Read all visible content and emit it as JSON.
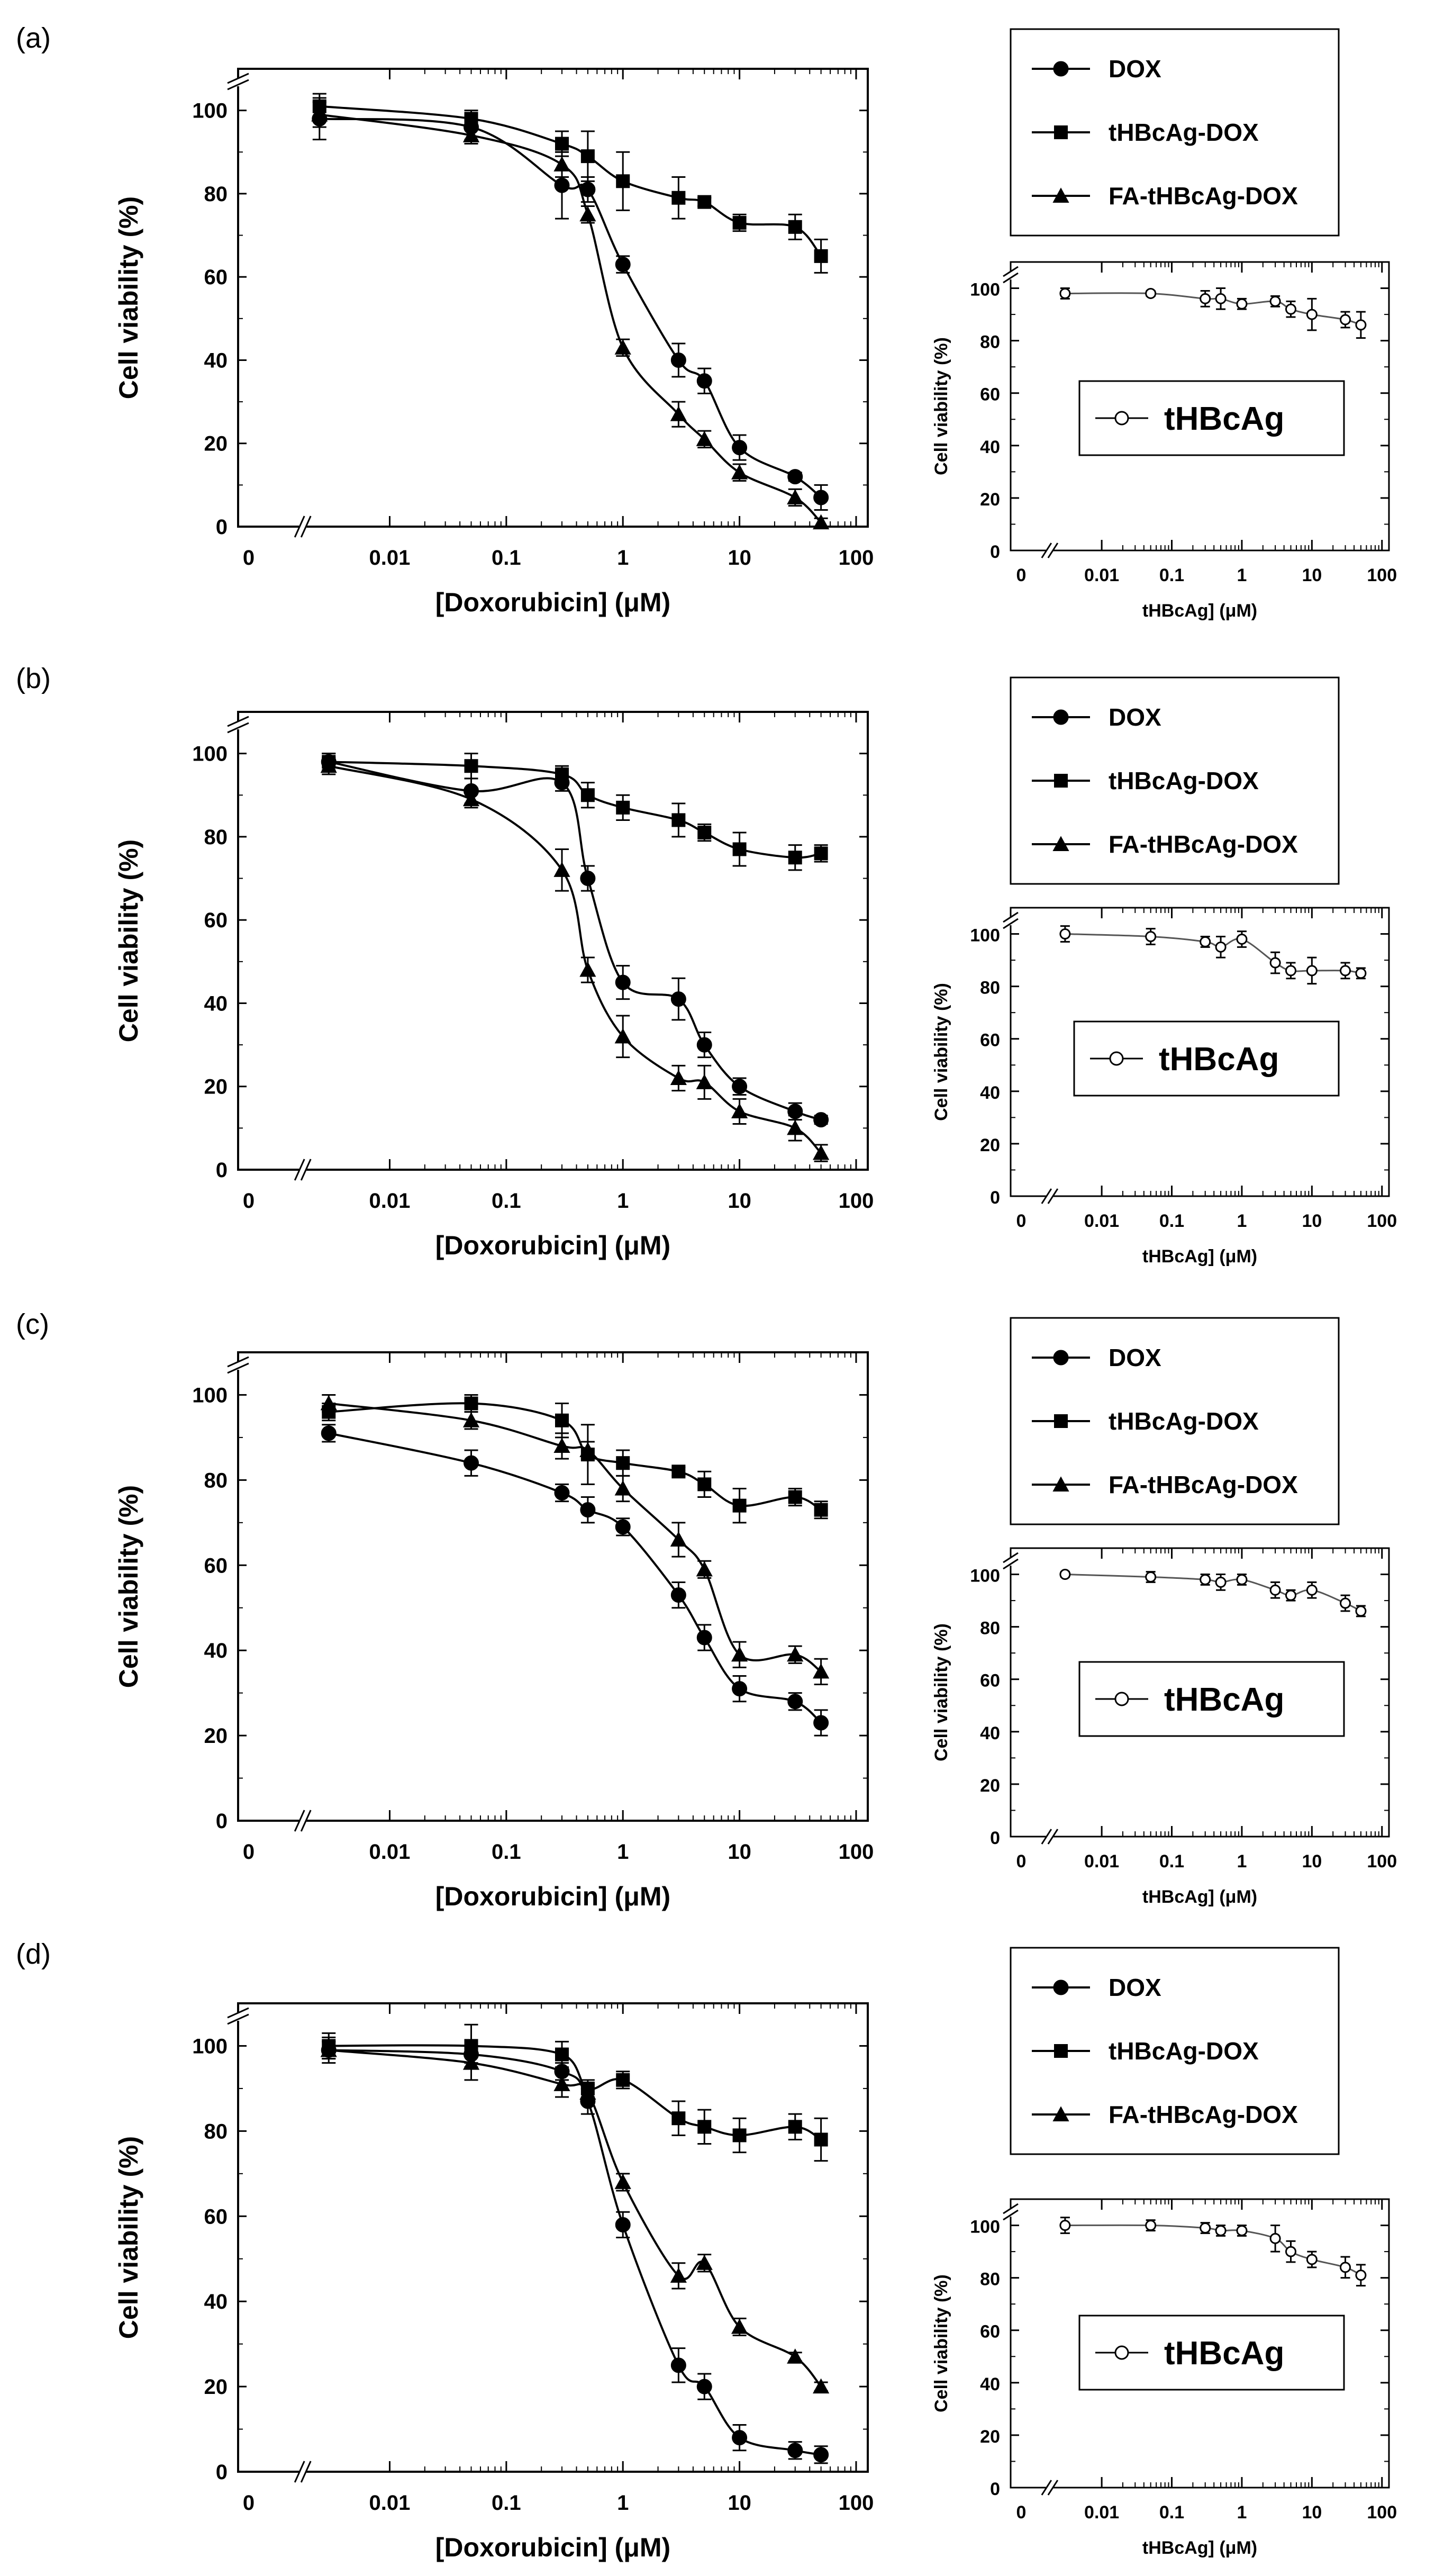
{
  "chart_data": [
    {
      "panel": "(a)",
      "type": "scatter",
      "xscale": "log",
      "x_tick_labels": [
        "0",
        "0.01",
        "0.1",
        "1",
        "10",
        "100"
      ],
      "y_tick_labels": [
        "0",
        "20",
        "40",
        "60",
        "80",
        "100"
      ],
      "xlabel": "[Doxorubicin] (μM)",
      "ylabel": "Cell viability (%)",
      "ylim": [
        0,
        110
      ],
      "series": [
        {
          "name": "DOX",
          "marker": "circle",
          "x": [
            0.0025,
            0.05,
            0.3,
            0.5,
            1,
            3,
            5,
            10,
            30,
            50
          ],
          "values": [
            98,
            96,
            82,
            81,
            63,
            40,
            35,
            19,
            12,
            7
          ],
          "err": [
            5,
            3,
            8,
            3,
            2,
            4,
            3,
            3,
            1,
            3
          ]
        },
        {
          "name": "tHBcAg-DOX",
          "marker": "square",
          "x": [
            0.0025,
            0.05,
            0.3,
            0.5,
            1,
            3,
            5,
            10,
            30,
            50
          ],
          "values": [
            101,
            98,
            92,
            89,
            83,
            79,
            78,
            73,
            72,
            65
          ],
          "err": [
            3,
            2,
            3,
            6,
            7,
            5,
            1,
            2,
            3,
            4
          ]
        },
        {
          "name": "FA-tHBcAg-DOX",
          "marker": "triangle",
          "x": [
            0.0025,
            0.05,
            0.3,
            0.5,
            1,
            3,
            5,
            10,
            30,
            50
          ],
          "values": [
            99,
            94,
            87,
            75,
            43,
            27,
            21,
            13,
            7,
            1
          ],
          "err": [
            3,
            2,
            3,
            2,
            2,
            3,
            2,
            2,
            2,
            1
          ]
        }
      ]
    },
    {
      "panel": "(a)",
      "type": "scatter",
      "xscale": "log",
      "x_tick_labels": [
        "0",
        "0.01",
        "0.1",
        "1",
        "10",
        "100"
      ],
      "y_tick_labels": [
        "0",
        "20",
        "40",
        "60",
        "80",
        "100"
      ],
      "xlabel": "tHBcAg] (μM)",
      "ylabel": "Cell viability (%)",
      "ylim": [
        0,
        110
      ],
      "series": [
        {
          "name": "tHBcAg",
          "marker": "open-circle",
          "x": [
            0.003,
            0.05,
            0.3,
            0.5,
            1,
            3,
            5,
            10,
            30,
            50
          ],
          "values": [
            98,
            98,
            96,
            96,
            94,
            95,
            92,
            90,
            88,
            86
          ],
          "err": [
            2,
            1,
            3,
            4,
            2,
            2,
            3,
            6,
            3,
            5
          ]
        }
      ]
    },
    {
      "panel": "(b)",
      "type": "scatter",
      "xscale": "log",
      "x_tick_labels": [
        "0",
        "0.01",
        "0.1",
        "1",
        "10",
        "100"
      ],
      "y_tick_labels": [
        "0",
        "20",
        "40",
        "60",
        "80",
        "100"
      ],
      "xlabel": "[Doxorubicin] (μM)",
      "ylabel": "Cell viability (%)",
      "ylim": [
        0,
        110
      ],
      "series": [
        {
          "name": "DOX",
          "marker": "circle",
          "x": [
            0.003,
            0.05,
            0.3,
            0.5,
            1,
            3,
            5,
            10,
            30,
            50
          ],
          "values": [
            98,
            91,
            93,
            70,
            45,
            41,
            30,
            20,
            14,
            12
          ],
          "err": [
            2,
            3,
            2,
            3,
            4,
            5,
            3,
            2,
            2,
            1
          ]
        },
        {
          "name": "tHBcAg-DOX",
          "marker": "square",
          "x": [
            0.003,
            0.05,
            0.3,
            0.5,
            1,
            3,
            5,
            10,
            30,
            50
          ],
          "values": [
            98,
            97,
            95,
            90,
            87,
            84,
            81,
            77,
            75,
            76
          ],
          "err": [
            2,
            3,
            2,
            3,
            3,
            4,
            2,
            4,
            3,
            2
          ]
        },
        {
          "name": "FA-tHBcAg-DOX",
          "marker": "triangle",
          "x": [
            0.003,
            0.05,
            0.3,
            0.5,
            1,
            3,
            5,
            10,
            30,
            50
          ],
          "values": [
            97,
            89,
            72,
            48,
            32,
            22,
            21,
            14,
            10,
            4
          ],
          "err": [
            2,
            2,
            5,
            3,
            5,
            3,
            4,
            3,
            3,
            2
          ]
        }
      ]
    },
    {
      "panel": "(b)",
      "type": "scatter",
      "xscale": "log",
      "x_tick_labels": [
        "0",
        "0.01",
        "0.1",
        "1",
        "10",
        "100"
      ],
      "y_tick_labels": [
        "0",
        "20",
        "40",
        "60",
        "80",
        "100"
      ],
      "xlabel": "tHBcAg] (μM)",
      "ylabel": "Cell viability (%)",
      "ylim": [
        0,
        110
      ],
      "series": [
        {
          "name": "tHBcAg",
          "marker": "open-circle",
          "x": [
            0.003,
            0.05,
            0.3,
            0.5,
            1,
            3,
            5,
            10,
            30,
            50
          ],
          "values": [
            100,
            99,
            97,
            95,
            98,
            89,
            86,
            86,
            86,
            85
          ],
          "err": [
            3,
            3,
            2,
            4,
            3,
            4,
            3,
            5,
            3,
            2
          ]
        }
      ]
    },
    {
      "panel": "(c)",
      "type": "scatter",
      "xscale": "log",
      "x_tick_labels": [
        "0",
        "0.01",
        "0.1",
        "1",
        "10",
        "100"
      ],
      "y_tick_labels": [
        "0",
        "20",
        "40",
        "60",
        "80",
        "100"
      ],
      "xlabel": "[Doxorubicin] (μM)",
      "ylabel": "Cell viability (%)",
      "ylim": [
        0,
        110
      ],
      "series": [
        {
          "name": "DOX",
          "marker": "circle",
          "x": [
            0.003,
            0.05,
            0.3,
            0.5,
            1,
            3,
            5,
            10,
            30,
            50
          ],
          "values": [
            91,
            84,
            77,
            73,
            69,
            53,
            43,
            31,
            28,
            23
          ],
          "err": [
            2,
            3,
            2,
            3,
            2,
            3,
            3,
            3,
            2,
            3
          ]
        },
        {
          "name": "tHBcAg-DOX",
          "marker": "square",
          "x": [
            0.003,
            0.05,
            0.3,
            0.5,
            1,
            3,
            5,
            10,
            30,
            50
          ],
          "values": [
            96,
            98,
            94,
            86,
            84,
            82,
            79,
            74,
            76,
            73
          ],
          "err": [
            2,
            2,
            4,
            7,
            3,
            1,
            3,
            4,
            2,
            2
          ]
        },
        {
          "name": "FA-tHBcAg-DOX",
          "marker": "triangle",
          "x": [
            0.003,
            0.05,
            0.3,
            0.5,
            1,
            3,
            5,
            10,
            30,
            50
          ],
          "values": [
            98,
            94,
            88,
            87,
            78,
            66,
            59,
            39,
            39,
            35
          ],
          "err": [
            2,
            2,
            3,
            2,
            3,
            4,
            2,
            3,
            2,
            3
          ]
        }
      ]
    },
    {
      "panel": "(c)",
      "type": "scatter",
      "xscale": "log",
      "x_tick_labels": [
        "0",
        "0.01",
        "0.1",
        "1",
        "10",
        "100"
      ],
      "y_tick_labels": [
        "0",
        "20",
        "40",
        "60",
        "80",
        "100"
      ],
      "xlabel": "tHBcAg] (μM)",
      "ylabel": "Cell viability (%)",
      "ylim": [
        0,
        110
      ],
      "series": [
        {
          "name": "tHBcAg",
          "marker": "open-circle",
          "x": [
            0.003,
            0.05,
            0.3,
            0.5,
            1,
            3,
            5,
            10,
            30,
            50
          ],
          "values": [
            100,
            99,
            98,
            97,
            98,
            94,
            92,
            94,
            89,
            86
          ],
          "err": [
            1,
            2,
            2,
            3,
            2,
            3,
            2,
            3,
            3,
            2
          ]
        }
      ]
    },
    {
      "panel": "(d)",
      "type": "scatter",
      "xscale": "log",
      "x_tick_labels": [
        "0",
        "0.01",
        "0.1",
        "1",
        "10",
        "100"
      ],
      "y_tick_labels": [
        "0",
        "20",
        "40",
        "60",
        "80",
        "100"
      ],
      "xlabel": "[Doxorubicin] (μM)",
      "ylabel": "Cell viability (%)",
      "ylim": [
        0,
        110
      ],
      "series": [
        {
          "name": "DOX",
          "marker": "circle",
          "x": [
            0.003,
            0.05,
            0.3,
            0.5,
            1,
            3,
            5,
            10,
            30,
            50
          ],
          "values": [
            99,
            98,
            94,
            87,
            58,
            25,
            20,
            8,
            5,
            4
          ],
          "err": [
            3,
            2,
            2,
            3,
            3,
            4,
            3,
            3,
            2,
            2
          ]
        },
        {
          "name": "tHBcAg-DOX",
          "marker": "square",
          "x": [
            0.003,
            0.05,
            0.3,
            0.5,
            1,
            3,
            5,
            10,
            30,
            50
          ],
          "values": [
            100,
            100,
            98,
            90,
            92,
            83,
            81,
            79,
            81,
            78
          ],
          "err": [
            3,
            5,
            3,
            2,
            2,
            4,
            4,
            4,
            3,
            5
          ]
        },
        {
          "name": "FA-tHBcAg-DOX",
          "marker": "triangle",
          "x": [
            0.003,
            0.05,
            0.3,
            0.5,
            1,
            3,
            5,
            10,
            30,
            50
          ],
          "values": [
            99,
            96,
            91,
            89,
            68,
            46,
            49,
            34,
            27,
            20
          ],
          "err": [
            2,
            4,
            3,
            2,
            2,
            3,
            2,
            2,
            1,
            1
          ]
        }
      ]
    },
    {
      "panel": "(d)",
      "type": "scatter",
      "xscale": "log",
      "x_tick_labels": [
        "0",
        "0.01",
        "0.1",
        "1",
        "10",
        "100"
      ],
      "y_tick_labels": [
        "0",
        "20",
        "40",
        "60",
        "80",
        "100"
      ],
      "xlabel": "tHBcAg] (μM)",
      "ylabel": "Cell viability (%)",
      "ylim": [
        0,
        110
      ],
      "series": [
        {
          "name": "tHBcAg",
          "marker": "open-circle",
          "x": [
            0.003,
            0.05,
            0.3,
            0.5,
            1,
            3,
            5,
            10,
            30,
            50
          ],
          "values": [
            100,
            100,
            99,
            98,
            98,
            95,
            90,
            87,
            84,
            81
          ],
          "err": [
            3,
            2,
            2,
            2,
            2,
            5,
            4,
            3,
            4,
            4
          ]
        }
      ]
    }
  ]
}
